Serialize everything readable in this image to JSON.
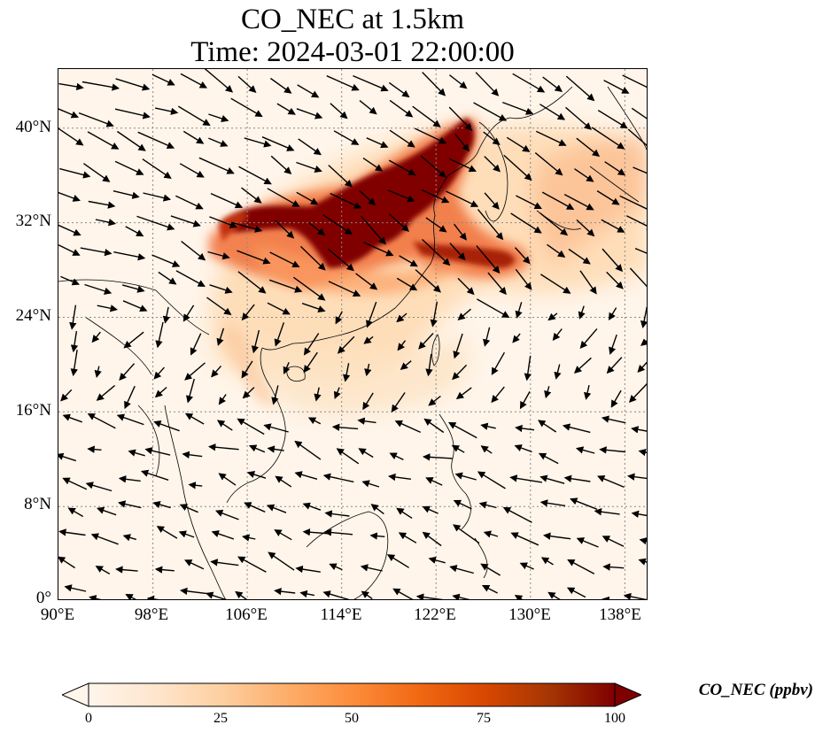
{
  "title": {
    "line1": "CO_NEC at 1.5km",
    "line2": "Time: 2024-03-01 22:00:00"
  },
  "map": {
    "lon_range": [
      90,
      140
    ],
    "lat_range": [
      0,
      45
    ],
    "lat_ticks": [
      {
        "value": 0,
        "label": "0°"
      },
      {
        "value": 8,
        "label": "8°N"
      },
      {
        "value": 16,
        "label": "16°N"
      },
      {
        "value": 24,
        "label": "24°N"
      },
      {
        "value": 32,
        "label": "32°N"
      },
      {
        "value": 40,
        "label": "40°N"
      }
    ],
    "lon_ticks": [
      {
        "value": 90,
        "label": "90°E"
      },
      {
        "value": 98,
        "label": "98°E"
      },
      {
        "value": 106,
        "label": "106°E"
      },
      {
        "value": 114,
        "label": "114°E"
      },
      {
        "value": 122,
        "label": "122°E"
      },
      {
        "value": 130,
        "label": "130°E"
      },
      {
        "value": 138,
        "label": "138°E"
      }
    ],
    "gridlines": true,
    "wind_vectors": true
  },
  "colorbar": {
    "label": "CO_NEC (ppbv)",
    "min": 0,
    "max": 100,
    "ticks": [
      {
        "value": 0,
        "label": "0"
      },
      {
        "value": 25,
        "label": "25"
      },
      {
        "value": 50,
        "label": "50"
      },
      {
        "value": 75,
        "label": "75"
      },
      {
        "value": 100,
        "label": "100"
      }
    ],
    "extend": "both",
    "colormap": [
      "#fff5eb",
      "#fee6ce",
      "#fdd0a2",
      "#fdae6b",
      "#fd8d3c",
      "#f16913",
      "#d94801",
      "#a63603",
      "#7f0000"
    ]
  },
  "colors": {
    "background": "#fff5ea",
    "coastline": "#000000",
    "grid": "#888888",
    "wind_arrow": "#000000"
  }
}
